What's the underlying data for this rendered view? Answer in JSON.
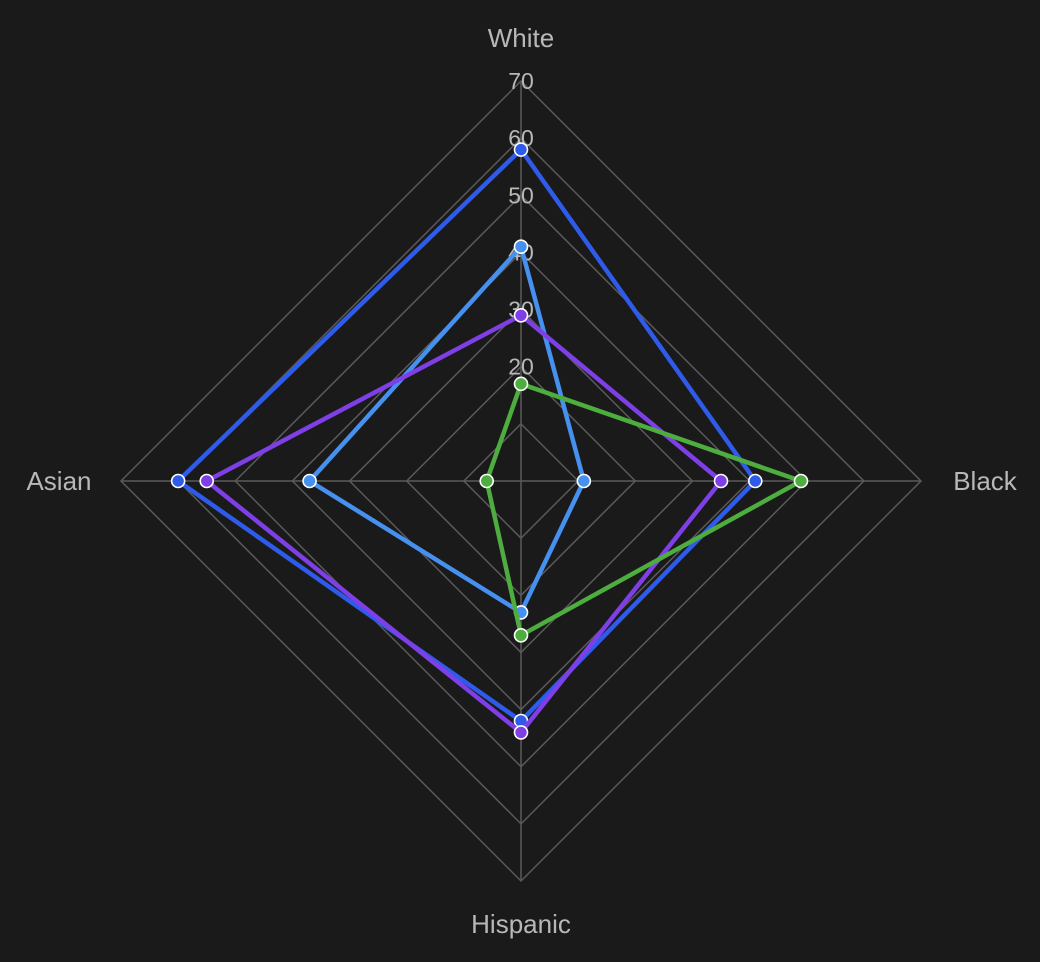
{
  "chart_data": {
    "type": "radar",
    "axes": [
      "White",
      "Black",
      "Hispanic",
      "Asian"
    ],
    "rlim": [
      0,
      70
    ],
    "ticks": [
      20,
      30,
      40,
      50,
      60,
      70
    ],
    "tick_labels": [
      "20",
      "30",
      "40",
      "50",
      "60",
      "70"
    ],
    "grid": true,
    "series": [
      {
        "color": "#2f5bea",
        "values": [
          58,
          41,
          42,
          60
        ]
      },
      {
        "color": "#4690ef",
        "values": [
          41,
          11,
          23,
          37
        ]
      },
      {
        "color": "#7f3fe6",
        "values": [
          29,
          35,
          44,
          55
        ]
      },
      {
        "color": "#4dad3e",
        "values": [
          17,
          49,
          27,
          6
        ]
      }
    ]
  }
}
